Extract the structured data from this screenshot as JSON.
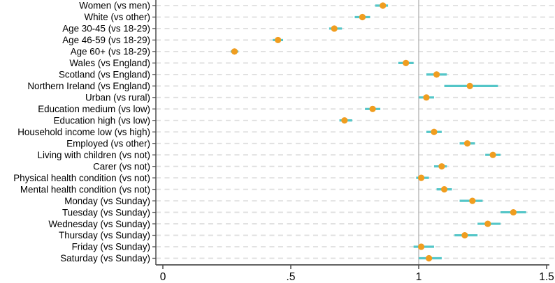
{
  "chart_data": {
    "type": "scatter",
    "variant": "forest-dot-whisker",
    "title": "",
    "xlabel": "",
    "ylabel": "",
    "xlim": [
      0,
      1.5
    ],
    "x_ticks": [
      {
        "label": "0",
        "value": 0
      },
      {
        "label": ".5",
        "value": 0.5
      },
      {
        "label": "1",
        "value": 1
      },
      {
        "label": "1.5",
        "value": 1.5
      }
    ],
    "reference_line_x": 1,
    "grid": "dashed-horizontal-per-category",
    "legend": "none",
    "points": [
      {
        "label": "Women (vs men)",
        "value": 0.86,
        "lo": 0.83,
        "hi": 0.88
      },
      {
        "label": "White (vs other)",
        "value": 0.78,
        "lo": 0.75,
        "hi": 0.81
      },
      {
        "label": "Age 30-45 (vs 18-29)",
        "value": 0.67,
        "lo": 0.65,
        "hi": 0.7
      },
      {
        "label": "Age 46-59 (vs 18-29)",
        "value": 0.45,
        "lo": 0.43,
        "hi": 0.47
      },
      {
        "label": "Age 60+ (vs 18-29)",
        "value": 0.28,
        "lo": 0.265,
        "hi": 0.295
      },
      {
        "label": "Wales (vs England)",
        "value": 0.95,
        "lo": 0.92,
        "hi": 0.98
      },
      {
        "label": "Scotland (vs England)",
        "value": 1.07,
        "lo": 1.03,
        "hi": 1.11
      },
      {
        "label": "Northern Ireland (vs England)",
        "value": 1.2,
        "lo": 1.1,
        "hi": 1.31
      },
      {
        "label": "Urban (vs rural)",
        "value": 1.03,
        "lo": 1.0,
        "hi": 1.06
      },
      {
        "label": "Education medium (vs low)",
        "value": 0.82,
        "lo": 0.79,
        "hi": 0.85
      },
      {
        "label": "Education high (vs low)",
        "value": 0.71,
        "lo": 0.69,
        "hi": 0.74
      },
      {
        "label": "Household income low (vs high)",
        "value": 1.06,
        "lo": 1.03,
        "hi": 1.09
      },
      {
        "label": "Employed (vs other)",
        "value": 1.19,
        "lo": 1.16,
        "hi": 1.22
      },
      {
        "label": "Living with children (vs not)",
        "value": 1.29,
        "lo": 1.26,
        "hi": 1.32
      },
      {
        "label": "Carer (vs not)",
        "value": 1.09,
        "lo": 1.06,
        "hi": 1.11
      },
      {
        "label": "Physical health condition (vs not)",
        "value": 1.01,
        "lo": 0.99,
        "hi": 1.04
      },
      {
        "label": "Mental health condition (vs not)",
        "value": 1.1,
        "lo": 1.07,
        "hi": 1.13
      },
      {
        "label": "Monday (vs Sunday)",
        "value": 1.21,
        "lo": 1.16,
        "hi": 1.25
      },
      {
        "label": "Tuesday (vs Sunday)",
        "value": 1.37,
        "lo": 1.32,
        "hi": 1.42
      },
      {
        "label": "Wednesday (vs Sunday)",
        "value": 1.27,
        "lo": 1.23,
        "hi": 1.32
      },
      {
        "label": "Thursday (vs Sunday)",
        "value": 1.18,
        "lo": 1.14,
        "hi": 1.23
      },
      {
        "label": "Friday (vs Sunday)",
        "value": 1.01,
        "lo": 0.98,
        "hi": 1.06
      },
      {
        "label": "Saturday (vs Sunday)",
        "value": 1.04,
        "lo": 1.0,
        "hi": 1.09
      }
    ],
    "colors": {
      "point": "#f09d1f",
      "ci_whisker": "#54c6c8",
      "reference_line": "#bfbfbf",
      "gridline": "#dedede",
      "axis": "#4d4d4d",
      "text": "#000000",
      "background": "#ffffff"
    }
  }
}
